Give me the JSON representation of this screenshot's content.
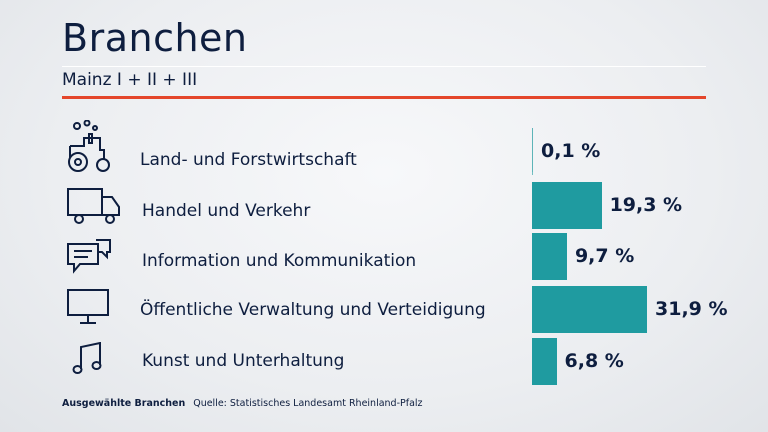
{
  "header": {
    "title": "Branchen",
    "subtitle": "Mainz I + II + III"
  },
  "chart_data": {
    "type": "bar",
    "orientation": "horizontal",
    "categories": [
      "Land- und Forstwirtschaft",
      "Handel und Verkehr",
      "Information und Kommunikation",
      "Öffentliche Verwaltung und Verteidigung",
      "Kunst und Unterhaltung"
    ],
    "values": [
      0.1,
      19.3,
      9.7,
      31.9,
      6.8
    ],
    "value_labels": [
      "0,1 %",
      "19,3 %",
      "9,7 %",
      "31,9 %",
      "6,8 %"
    ],
    "icons": [
      "tractor-icon",
      "truck-icon",
      "chat-bubbles-icon",
      "monitor-icon",
      "music-note-icon"
    ],
    "bar_color": "#1f9ba0",
    "xlim": [
      0,
      32
    ]
  },
  "footer": {
    "label": "Ausgewählte Branchen",
    "source": "Quelle: Statistisches Landesamt Rheinland-Pfalz"
  },
  "colors": {
    "accent_red": "#e4462b",
    "text_navy": "#0e1e3f"
  }
}
